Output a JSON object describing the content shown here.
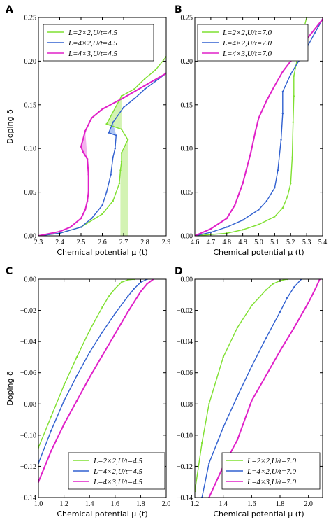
{
  "chart_data": [
    {
      "panel": "A",
      "type": "line",
      "xlabel": "Chemical potential μ (t)",
      "ylabel": "Doping δ",
      "xlim": [
        2.3,
        2.9
      ],
      "ylim": [
        0.0,
        0.25
      ],
      "xticks": [
        "2.3",
        "2.4",
        "2.5",
        "2.6",
        "2.7",
        "2.8",
        "2.9"
      ],
      "yticks": [
        "0.00",
        "0.05",
        "0.10",
        "0.15",
        "0.20",
        "0.25"
      ],
      "legend_position": "top-left",
      "series": [
        {
          "name": "L=2×2,U/t=4.5",
          "color": "#7fe030",
          "x": [
            2.3,
            2.4,
            2.5,
            2.6,
            2.65,
            2.68,
            2.685,
            2.69,
            2.69,
            2.72,
            2.69,
            2.62,
            2.69,
            2.75,
            2.8,
            2.85,
            2.9
          ],
          "y": [
            0.0,
            0.003,
            0.01,
            0.025,
            0.04,
            0.06,
            0.075,
            0.085,
            0.095,
            0.11,
            0.122,
            0.128,
            0.16,
            0.168,
            0.18,
            0.19,
            0.205
          ]
        },
        {
          "name": "L=4×2,U/t=4.5",
          "color": "#3060d0",
          "x": [
            2.3,
            2.4,
            2.5,
            2.55,
            2.6,
            2.62,
            2.64,
            2.65,
            2.66,
            2.665,
            2.63,
            2.65,
            2.7,
            2.75,
            2.8,
            2.85,
            2.9
          ],
          "y": [
            0.0,
            0.003,
            0.01,
            0.02,
            0.035,
            0.05,
            0.07,
            0.09,
            0.1,
            0.115,
            0.118,
            0.13,
            0.147,
            0.157,
            0.168,
            0.177,
            0.186
          ]
        },
        {
          "name": "L=4×3,U/t=4.5",
          "color": "#e020c8",
          "x": [
            2.3,
            2.4,
            2.45,
            2.5,
            2.52,
            2.53,
            2.535,
            2.535,
            2.53,
            2.51,
            2.5,
            2.52,
            2.55,
            2.6,
            2.7,
            2.8,
            2.9
          ],
          "y": [
            0.0,
            0.005,
            0.01,
            0.02,
            0.03,
            0.04,
            0.05,
            0.07,
            0.088,
            0.096,
            0.102,
            0.12,
            0.135,
            0.145,
            0.158,
            0.172,
            0.186
          ]
        }
      ]
    },
    {
      "panel": "B",
      "type": "line",
      "xlabel": "Chemical potential μ (t)",
      "ylabel": "",
      "xlim": [
        4.6,
        5.4
      ],
      "ylim": [
        0.0,
        0.25
      ],
      "xticks": [
        "4.6",
        "4.7",
        "4.8",
        "4.9",
        "5.0",
        "5.1",
        "5.2",
        "5.3",
        "5.4"
      ],
      "yticks": [
        "0.00",
        "0.05",
        "0.10",
        "0.15",
        "0.20",
        "0.25"
      ],
      "legend_position": "top-left",
      "series": [
        {
          "name": "L=2×2,U/t=7.0",
          "color": "#7fe030",
          "x": [
            4.6,
            4.8,
            4.9,
            5.0,
            5.1,
            5.15,
            5.18,
            5.2,
            5.21,
            5.215,
            5.22,
            5.22,
            5.25,
            5.28,
            5.3
          ],
          "y": [
            0.0,
            0.003,
            0.007,
            0.013,
            0.022,
            0.032,
            0.045,
            0.06,
            0.09,
            0.13,
            0.16,
            0.183,
            0.21,
            0.235,
            0.25
          ]
        },
        {
          "name": "L=4×2,U/t=7.0",
          "color": "#3060d0",
          "x": [
            4.6,
            4.7,
            4.8,
            4.9,
            5.0,
            5.05,
            5.1,
            5.12,
            5.14,
            5.15,
            5.15,
            5.2,
            5.25,
            5.3,
            5.35,
            5.4
          ],
          "y": [
            0.0,
            0.004,
            0.01,
            0.018,
            0.03,
            0.04,
            0.055,
            0.075,
            0.11,
            0.14,
            0.165,
            0.185,
            0.2,
            0.215,
            0.232,
            0.248
          ]
        },
        {
          "name": "L=4×3,U/t=7.0",
          "color": "#e020c8",
          "x": [
            4.6,
            4.7,
            4.8,
            4.85,
            4.9,
            4.95,
            4.98,
            5.0,
            5.05,
            5.1,
            5.15,
            5.2,
            5.3,
            5.4
          ],
          "y": [
            0.0,
            0.008,
            0.02,
            0.035,
            0.06,
            0.095,
            0.12,
            0.135,
            0.155,
            0.172,
            0.188,
            0.2,
            0.225,
            0.248
          ]
        }
      ]
    },
    {
      "panel": "C",
      "type": "line",
      "xlabel": "Chemical potential μ (t)",
      "ylabel": "Doping δ",
      "xlim": [
        1.0,
        2.0
      ],
      "ylim": [
        -0.14,
        0.0
      ],
      "xticks": [
        "1.0",
        "1.2",
        "1.4",
        "1.6",
        "1.8",
        "2.0"
      ],
      "yticks": [
        "0.00",
        "−0.02",
        "−0.04",
        "−0.06",
        "−0.08",
        "−0.10",
        "−0.12",
        "−0.14"
      ],
      "legend_position": "bottom-right",
      "series": [
        {
          "name": "L=2×2,U/t=4.5",
          "color": "#7fe030",
          "x": [
            1.0,
            1.1,
            1.2,
            1.3,
            1.4,
            1.5,
            1.55,
            1.6,
            1.65,
            1.7,
            1.75
          ],
          "y": [
            -0.108,
            -0.088,
            -0.068,
            -0.05,
            -0.033,
            -0.018,
            -0.011,
            -0.006,
            -0.002,
            -0.0005,
            0.0
          ]
        },
        {
          "name": "L=4×2,U/t=4.5",
          "color": "#3060d0",
          "x": [
            1.0,
            1.1,
            1.2,
            1.3,
            1.4,
            1.5,
            1.6,
            1.7,
            1.75,
            1.8,
            1.85
          ],
          "y": [
            -0.118,
            -0.097,
            -0.078,
            -0.062,
            -0.047,
            -0.034,
            -0.022,
            -0.011,
            -0.006,
            -0.002,
            0.0
          ]
        },
        {
          "name": "L=4×3,U/t=4.5",
          "color": "#e020c8",
          "x": [
            1.0,
            1.1,
            1.2,
            1.3,
            1.4,
            1.5,
            1.6,
            1.7,
            1.8,
            1.85,
            1.9
          ],
          "y": [
            -0.13,
            -0.11,
            -0.093,
            -0.078,
            -0.063,
            -0.049,
            -0.035,
            -0.021,
            -0.008,
            -0.003,
            0.0
          ]
        }
      ]
    },
    {
      "panel": "D",
      "type": "line",
      "xlabel": "Chemical potential μ (t)",
      "ylabel": "",
      "xlim": [
        1.2,
        2.1
      ],
      "ylim": [
        -0.14,
        0.0
      ],
      "xticks": [
        "1.2",
        "1.4",
        "1.6",
        "1.8",
        "2.0"
      ],
      "yticks": [
        "0.00",
        "−0.02",
        "−0.04",
        "−0.06",
        "−0.08",
        "−0.10",
        "−0.12",
        "−0.14"
      ],
      "legend_position": "bottom-right",
      "series": [
        {
          "name": "L=2×2,U/t=7.0",
          "color": "#7fe030",
          "x": [
            1.2,
            1.25,
            1.3,
            1.4,
            1.5,
            1.6,
            1.7,
            1.75,
            1.8,
            1.85
          ],
          "y": [
            -0.136,
            -0.105,
            -0.08,
            -0.05,
            -0.031,
            -0.017,
            -0.007,
            -0.003,
            -0.001,
            0.0
          ]
        },
        {
          "name": "L=4×2,U/t=7.0",
          "color": "#3060d0",
          "x": [
            1.25,
            1.3,
            1.4,
            1.5,
            1.6,
            1.7,
            1.8,
            1.85,
            1.9,
            1.95
          ],
          "y": [
            -0.14,
            -0.118,
            -0.095,
            -0.075,
            -0.056,
            -0.038,
            -0.021,
            -0.012,
            -0.005,
            0.0
          ]
        },
        {
          "name": "L=4×3,U/t=7.0",
          "color": "#e020c8",
          "x": [
            1.3,
            1.4,
            1.5,
            1.6,
            1.7,
            1.8,
            1.9,
            2.0,
            2.05,
            2.08
          ],
          "y": [
            -0.14,
            -0.12,
            -0.103,
            -0.078,
            -0.062,
            -0.046,
            -0.031,
            -0.015,
            -0.006,
            0.0
          ]
        }
      ]
    }
  ],
  "panel_letters": [
    "A",
    "B",
    "C",
    "D"
  ]
}
